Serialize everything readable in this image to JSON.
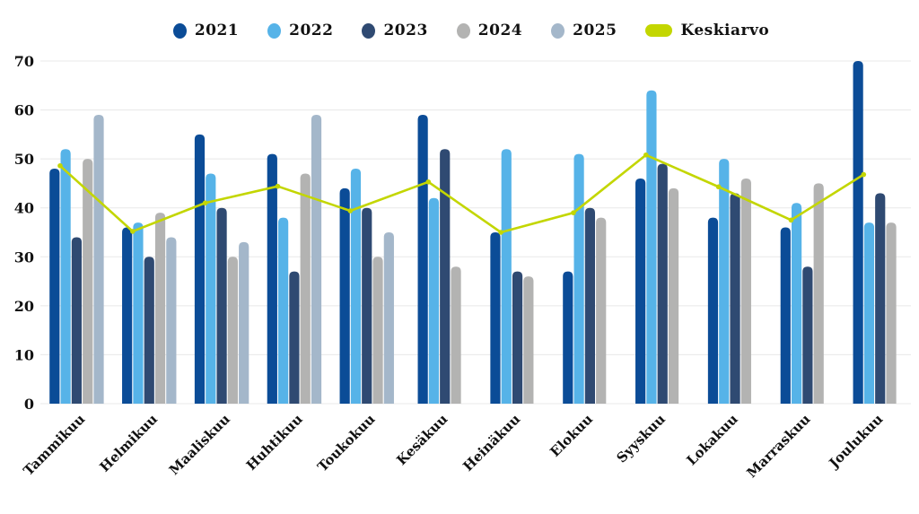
{
  "legend": {
    "items": [
      {
        "label": "2021",
        "color": "#0b4c97",
        "marker": "circle"
      },
      {
        "label": "2022",
        "color": "#56b3e8",
        "marker": "circle"
      },
      {
        "label": "2023",
        "color": "#2f4a72",
        "marker": "circle"
      },
      {
        "label": "2024",
        "color": "#b3b3b2",
        "marker": "circle"
      },
      {
        "label": "2025",
        "color": "#a4b7ca",
        "marker": "circle"
      },
      {
        "label": "Keskiarvo",
        "color": "#c3d600",
        "marker": "pill"
      }
    ]
  },
  "chart_data": {
    "type": "bar",
    "title": "",
    "xlabel": "",
    "ylabel": "",
    "categories": [
      "Tammikuu",
      "Helmikuu",
      "Maaliskuu",
      "Huhtikuu",
      "Toukokuu",
      "Kesäkuu",
      "Heinäkuu",
      "Elokuu",
      "Syyskuu",
      "Lokakuu",
      "Marraskuu",
      "Joulukuu"
    ],
    "series": [
      {
        "name": "2021",
        "color": "#0b4c97",
        "values": [
          48,
          36,
          55,
          51,
          44,
          59,
          35,
          27,
          46,
          38,
          36,
          70
        ]
      },
      {
        "name": "2022",
        "color": "#56b3e8",
        "values": [
          52,
          37,
          47,
          38,
          48,
          42,
          52,
          51,
          64,
          50,
          41,
          37
        ]
      },
      {
        "name": "2023",
        "color": "#2f4a72",
        "values": [
          34,
          30,
          40,
          27,
          40,
          52,
          27,
          40,
          49,
          43,
          28,
          43
        ]
      },
      {
        "name": "2024",
        "color": "#b3b3b2",
        "values": [
          50,
          39,
          30,
          47,
          30,
          28,
          26,
          38,
          44,
          46,
          45,
          37
        ]
      },
      {
        "name": "2025",
        "color": "#a4b7ca",
        "values": [
          59,
          34,
          33,
          59,
          35,
          null,
          null,
          null,
          null,
          null,
          null,
          null
        ]
      }
    ],
    "line_series": {
      "name": "Keskiarvo",
      "color": "#c3d600",
      "values": [
        48.6,
        35.2,
        41.0,
        44.4,
        39.4,
        45.3,
        35.0,
        39.0,
        50.8,
        44.3,
        37.5,
        46.8
      ]
    },
    "ylim": [
      0,
      70
    ],
    "yticks": [
      0,
      10,
      20,
      30,
      40,
      50,
      60,
      70
    ],
    "grid": true,
    "gridline_color": "#e8e8e8",
    "legend_position": "top"
  }
}
